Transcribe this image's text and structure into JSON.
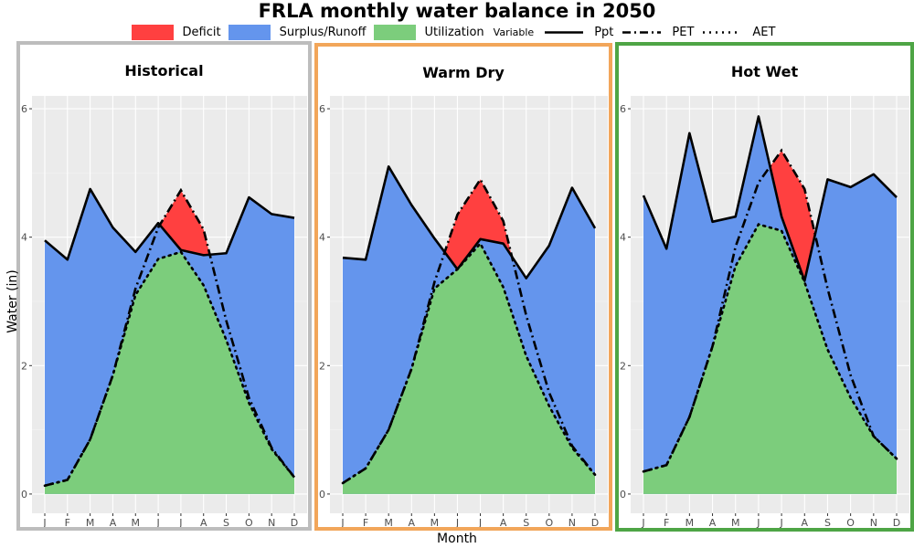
{
  "chart_data": {
    "type": "area",
    "title": "FRLA monthly water balance in 2050",
    "xlabel": "Month",
    "ylabel": "Water (in)",
    "ylim": [
      -0.3,
      6.2
    ],
    "yticks": [
      0,
      2,
      4,
      6
    ],
    "months": [
      "J",
      "F",
      "M",
      "A",
      "M",
      "J",
      "J",
      "A",
      "S",
      "O",
      "N",
      "D"
    ],
    "legend": {
      "fills": [
        {
          "label": "Deficit",
          "color": "#ff4040"
        },
        {
          "label": "Surplus/Runoff",
          "color": "#6495ed"
        },
        {
          "label": "Utilization",
          "color": "#7ccd7c"
        }
      ],
      "variable_title": "Variable",
      "lines": [
        {
          "label": "Ppt",
          "style": "solid"
        },
        {
          "label": "PET",
          "style": "dashdot"
        },
        {
          "label": "AET",
          "style": "dotted"
        }
      ]
    },
    "panels": [
      {
        "name": "Historical",
        "border_color": "#bdbdbd",
        "ppt": [
          3.95,
          3.65,
          4.75,
          4.15,
          3.77,
          4.22,
          3.8,
          3.72,
          3.75,
          4.62,
          4.36,
          4.3
        ],
        "pet": [
          0.13,
          0.22,
          0.85,
          1.85,
          3.2,
          4.15,
          4.73,
          4.12,
          2.7,
          1.5,
          0.72,
          0.26
        ],
        "aet": [
          0.13,
          0.22,
          0.85,
          1.85,
          3.1,
          3.66,
          3.77,
          3.25,
          2.4,
          1.42,
          0.7,
          0.26
        ]
      },
      {
        "name": "Warm Dry",
        "border_color": "#f2a65a",
        "ppt": [
          3.68,
          3.65,
          5.1,
          4.5,
          3.98,
          3.5,
          3.97,
          3.9,
          3.36,
          3.87,
          4.77,
          4.14
        ],
        "pet": [
          0.17,
          0.4,
          1.0,
          1.95,
          3.3,
          4.35,
          4.9,
          4.25,
          2.78,
          1.58,
          0.75,
          0.3
        ],
        "aet": [
          0.17,
          0.4,
          1.0,
          1.95,
          3.2,
          3.5,
          3.9,
          3.22,
          2.15,
          1.37,
          0.72,
          0.3
        ]
      },
      {
        "name": "Hot Wet",
        "border_color": "#4ea545",
        "ppt": [
          4.65,
          3.82,
          5.62,
          4.24,
          4.32,
          5.88,
          4.32,
          3.32,
          4.9,
          4.78,
          4.98,
          4.62
        ],
        "pet": [
          0.35,
          0.45,
          1.2,
          2.3,
          3.85,
          4.85,
          5.35,
          4.75,
          3.2,
          1.85,
          0.9,
          0.55
        ],
        "aet": [
          0.35,
          0.45,
          1.2,
          2.3,
          3.55,
          4.2,
          4.1,
          3.3,
          2.25,
          1.5,
          0.9,
          0.55
        ]
      }
    ]
  }
}
